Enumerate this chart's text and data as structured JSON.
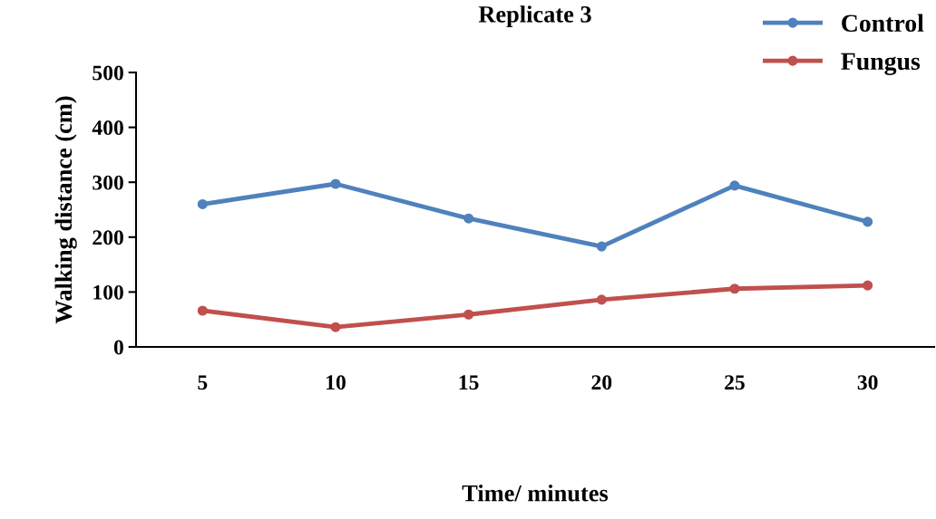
{
  "chart_data": {
    "type": "line",
    "title": "Replicate 3",
    "xlabel": "Time/ minutes",
    "ylabel": "Walking distance (cm)",
    "categories": [
      "5",
      "10",
      "15",
      "20",
      "25",
      "30"
    ],
    "series": [
      {
        "name": "Control",
        "color": "#4f81bd",
        "values": [
          260,
          297,
          234,
          183,
          294,
          228
        ]
      },
      {
        "name": "Fungus",
        "color": "#c0504d",
        "values": [
          66,
          36,
          59,
          86,
          106,
          112
        ]
      }
    ],
    "ylim": [
      0,
      500
    ],
    "yticks": [
      0,
      100,
      200,
      300,
      400,
      500
    ],
    "grid": false,
    "legend": "top right",
    "marker": "circle",
    "line_style": "solid"
  }
}
